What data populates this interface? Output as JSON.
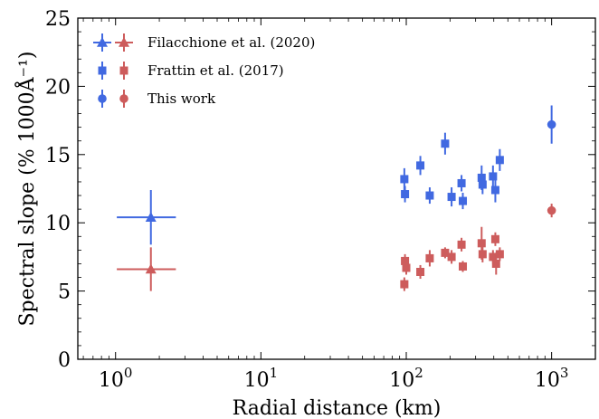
{
  "chart_data": {
    "type": "scatter",
    "xscale": "log",
    "xlim": [
      0.55,
      2000
    ],
    "ylim": [
      0,
      25
    ],
    "xlabel": "Radial distance (km)",
    "ylabel": "Spectral slope (% 1000Å⁻¹)",
    "x_ticks": [
      {
        "value": 1,
        "base": "10",
        "exp": "0"
      },
      {
        "value": 10,
        "base": "10",
        "exp": "1"
      },
      {
        "value": 100,
        "base": "10",
        "exp": "2"
      },
      {
        "value": 1000,
        "base": "10",
        "exp": "3"
      }
    ],
    "y_ticks": [
      {
        "value": 0,
        "label": "0"
      },
      {
        "value": 5,
        "label": "5"
      },
      {
        "value": 10,
        "label": "10"
      },
      {
        "value": 15,
        "label": "15"
      },
      {
        "value": 20,
        "label": "20"
      },
      {
        "value": 25,
        "label": "25"
      }
    ],
    "grid": false,
    "legend_position": "top-left",
    "colors": {
      "blue": "#4169e1",
      "red": "#cd5c5c"
    },
    "legend": [
      {
        "label": "Filacchione et al. (2020)",
        "marker": "triangle"
      },
      {
        "label": "Frattin et al. (2017)",
        "marker": "square"
      },
      {
        "label": "This work",
        "marker": "circle"
      }
    ],
    "series": [
      {
        "source": "Filacchione et al. (2020)",
        "color": "blue",
        "marker": "triangle",
        "points": [
          {
            "x": 1.75,
            "y": 10.4,
            "yerr": 2.0,
            "xlow": 1.02,
            "xhigh": 2.6
          }
        ]
      },
      {
        "source": "Filacchione et al. (2020)",
        "color": "red",
        "marker": "triangle",
        "points": [
          {
            "x": 1.75,
            "y": 6.6,
            "yerr": 1.6,
            "xlow": 1.02,
            "xhigh": 2.6
          }
        ]
      },
      {
        "source": "Frattin et al. (2017)",
        "color": "blue",
        "marker": "square",
        "points": [
          {
            "x": 97,
            "y": 13.2,
            "yerr": 0.8
          },
          {
            "x": 98,
            "y": 12.1,
            "yerr": 0.6
          },
          {
            "x": 125,
            "y": 14.2,
            "yerr": 0.7
          },
          {
            "x": 145,
            "y": 12.0,
            "yerr": 0.6
          },
          {
            "x": 185,
            "y": 15.8,
            "yerr": 0.8
          },
          {
            "x": 205,
            "y": 11.9,
            "yerr": 0.7
          },
          {
            "x": 240,
            "y": 12.9,
            "yerr": 0.6
          },
          {
            "x": 245,
            "y": 11.6,
            "yerr": 0.6
          },
          {
            "x": 330,
            "y": 13.3,
            "yerr": 0.9
          },
          {
            "x": 335,
            "y": 12.8,
            "yerr": 0.7
          },
          {
            "x": 395,
            "y": 13.4,
            "yerr": 0.8
          },
          {
            "x": 410,
            "y": 12.4,
            "yerr": 0.9
          },
          {
            "x": 440,
            "y": 14.6,
            "yerr": 0.8
          }
        ]
      },
      {
        "source": "Frattin et al. (2017)",
        "color": "red",
        "marker": "square",
        "points": [
          {
            "x": 97,
            "y": 5.5,
            "yerr": 0.5
          },
          {
            "x": 98,
            "y": 7.2,
            "yerr": 0.5
          },
          {
            "x": 100,
            "y": 6.7,
            "yerr": 0.5
          },
          {
            "x": 125,
            "y": 6.4,
            "yerr": 0.5
          },
          {
            "x": 145,
            "y": 7.4,
            "yerr": 0.6
          },
          {
            "x": 185,
            "y": 7.8,
            "yerr": 0.4
          },
          {
            "x": 205,
            "y": 7.5,
            "yerr": 0.5
          },
          {
            "x": 240,
            "y": 8.4,
            "yerr": 0.5
          },
          {
            "x": 245,
            "y": 6.8,
            "yerr": 0.4
          },
          {
            "x": 330,
            "y": 8.5,
            "yerr": 1.2
          },
          {
            "x": 335,
            "y": 7.7,
            "yerr": 0.6
          },
          {
            "x": 395,
            "y": 7.5,
            "yerr": 0.5
          },
          {
            "x": 410,
            "y": 8.8,
            "yerr": 0.5
          },
          {
            "x": 415,
            "y": 7.0,
            "yerr": 0.8
          },
          {
            "x": 440,
            "y": 7.7,
            "yerr": 0.5
          }
        ]
      },
      {
        "source": "This work",
        "color": "blue",
        "marker": "circle",
        "points": [
          {
            "x": 1000,
            "y": 17.2,
            "yerr": 1.4
          }
        ]
      },
      {
        "source": "This work",
        "color": "red",
        "marker": "circle",
        "points": [
          {
            "x": 1000,
            "y": 10.9,
            "yerr": 0.5
          }
        ]
      }
    ]
  }
}
